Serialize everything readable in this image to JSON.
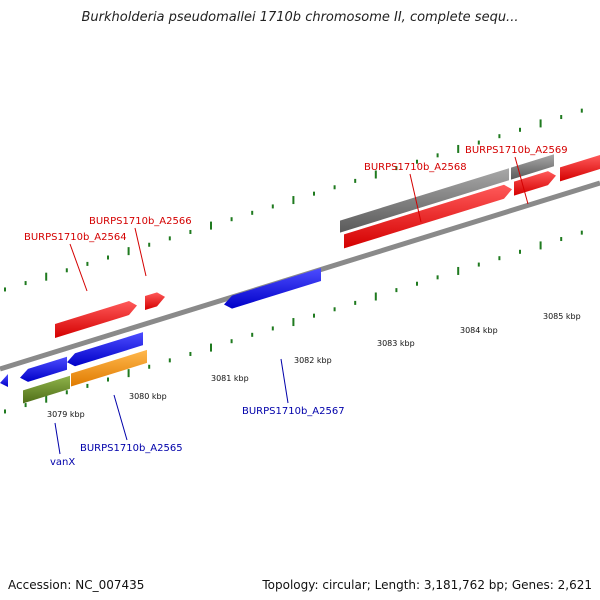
{
  "title": "Burkholderia pseudomallei 1710b chromosome II, complete sequ...",
  "footer": {
    "accession": "Accession: NC_007435",
    "topology": "Topology: circular; Length: 3,181,762 bp; Genes: 2,621"
  },
  "colors": {
    "forward_label": "#d40000",
    "reverse_label": "#0000aa",
    "red_gene": "#ff0000",
    "blue_gene": "#0000ff",
    "gray_gene": "#777777",
    "green_gene": "#6b8e23",
    "orange_gene": "#ff9900",
    "tick": "#1f7a1f",
    "backbone": "#8a8a8a"
  },
  "ticks": [
    "3079 kbp",
    "3080 kbp",
    "3081 kbp",
    "3082 kbp",
    "3083 kbp",
    "3084 kbp",
    "3085 kbp"
  ],
  "genes": [
    {
      "label": "BURPS1710b_A2564",
      "strand": "forward",
      "color": "red"
    },
    {
      "label": "BURPS1710b_A2566",
      "strand": "forward",
      "color": "red"
    },
    {
      "label": "BURPS1710b_A2568",
      "strand": "forward",
      "color": "red"
    },
    {
      "label": "BURPS1710b_A2569",
      "strand": "forward",
      "color": "gray"
    },
    {
      "label": "BURPS1710b_A2567",
      "strand": "reverse",
      "color": "blue"
    },
    {
      "label": "BURPS1710b_A2565",
      "strand": "reverse",
      "color": "orange"
    },
    {
      "label": "vanX",
      "strand": "reverse",
      "color": "green"
    }
  ]
}
